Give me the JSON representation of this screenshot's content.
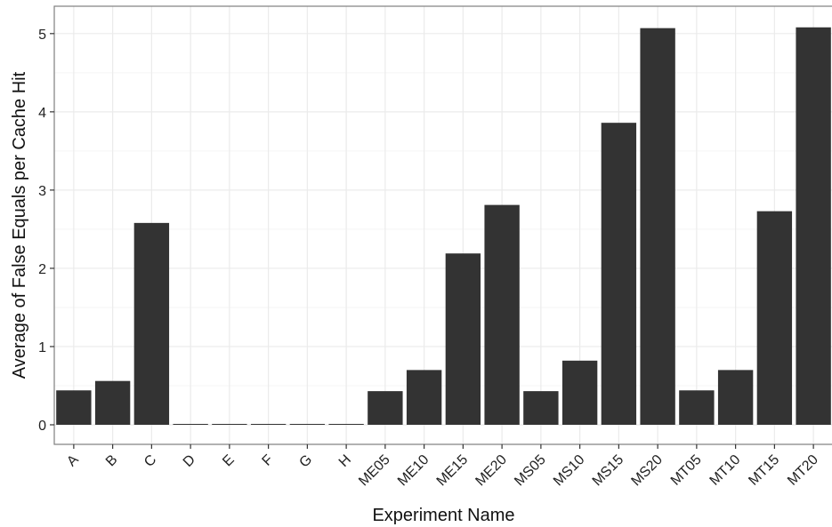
{
  "chart_data": {
    "type": "bar",
    "title": "",
    "xlabel": "Experiment Name",
    "ylabel": "Average of False Equals per Cache Hit",
    "categories": [
      "A",
      "B",
      "C",
      "D",
      "E",
      "F",
      "G",
      "H",
      "ME05",
      "ME10",
      "ME15",
      "ME20",
      "MS05",
      "MS10",
      "MS15",
      "MS20",
      "MT05",
      "MT10",
      "MT15",
      "MT20"
    ],
    "values": [
      0.44,
      0.56,
      2.58,
      0.01,
      0.01,
      0.01,
      0.01,
      0.01,
      0.43,
      0.7,
      2.19,
      2.81,
      0.43,
      0.82,
      3.86,
      5.07,
      0.44,
      0.7,
      2.73,
      5.08
    ],
    "ylim": [
      -0.25,
      5.35
    ],
    "yticks": [
      0,
      1,
      2,
      3,
      4,
      5
    ],
    "grid": true,
    "bar_color": "#333333",
    "grid_major_color": "#ebebeb",
    "grid_minor_color": "#f5f5f5",
    "panel_border_color": "#7f7f7f"
  }
}
